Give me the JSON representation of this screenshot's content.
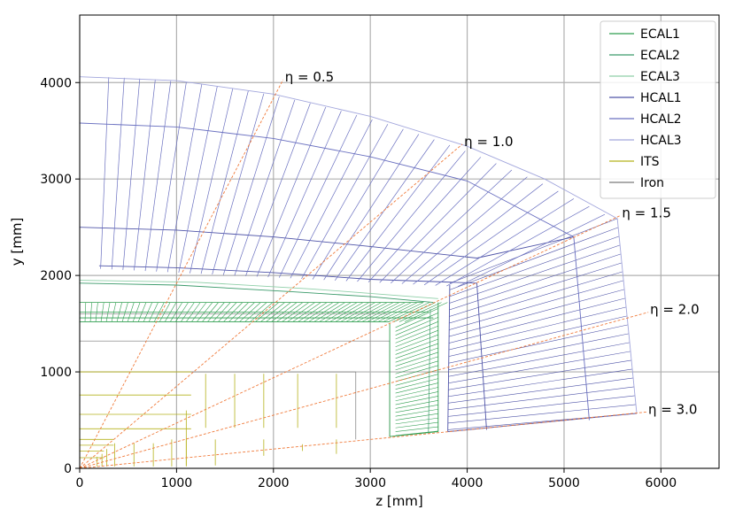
{
  "chart_data": {
    "type": "line",
    "title": "",
    "xlabel": "z [mm]",
    "ylabel": "y [mm]",
    "xlim": [
      0,
      6600
    ],
    "ylim": [
      0,
      4700
    ],
    "xticks": [
      0,
      1000,
      2000,
      3000,
      4000,
      5000,
      6000
    ],
    "yticks": [
      0,
      1000,
      2000,
      3000,
      4000
    ],
    "xtick_labels": [
      "0",
      "1000",
      "2000",
      "3000",
      "4000",
      "5000",
      "6000"
    ],
    "ytick_labels": [
      "0",
      "1000",
      "2000",
      "3000",
      "4000"
    ],
    "grid": true,
    "legend_position": "top-right",
    "legend": [
      "ECAL1",
      "ECAL2",
      "ECAL3",
      "HCAL1",
      "HCAL2",
      "HCAL3",
      "ITS",
      "Iron"
    ],
    "colors": {
      "ECAL1": "#2e9e4f",
      "ECAL2": "#3a9a6a",
      "ECAL3": "#8fcfa8",
      "HCAL1": "#4f54a8",
      "HCAL2": "#6a70c0",
      "HCAL3": "#a2a6dc",
      "ITS": "#b5b21c",
      "Iron": "#7a7a7a",
      "eta": "#f07a3a"
    },
    "eta_lines": [
      {
        "label": "η = 0.5",
        "eta": 0.5
      },
      {
        "label": "η = 1.0",
        "eta": 1.0
      },
      {
        "label": "η = 1.5",
        "eta": 1.5
      },
      {
        "label": "η = 2.0",
        "eta": 2.0
      },
      {
        "label": "η = 3.0",
        "eta": 3.0
      }
    ],
    "hcal_radii_barrel": [
      2100,
      2500,
      3580,
      4060
    ],
    "ecal_barrel_y": [
      1500,
      1720
    ],
    "ecal_endcap_z": [
      3200,
      3700
    ],
    "iron_barrel_y": [
      1320,
      1000
    ],
    "its_layers_y": [
      1000,
      780,
      560,
      410,
      300,
      180
    ]
  }
}
